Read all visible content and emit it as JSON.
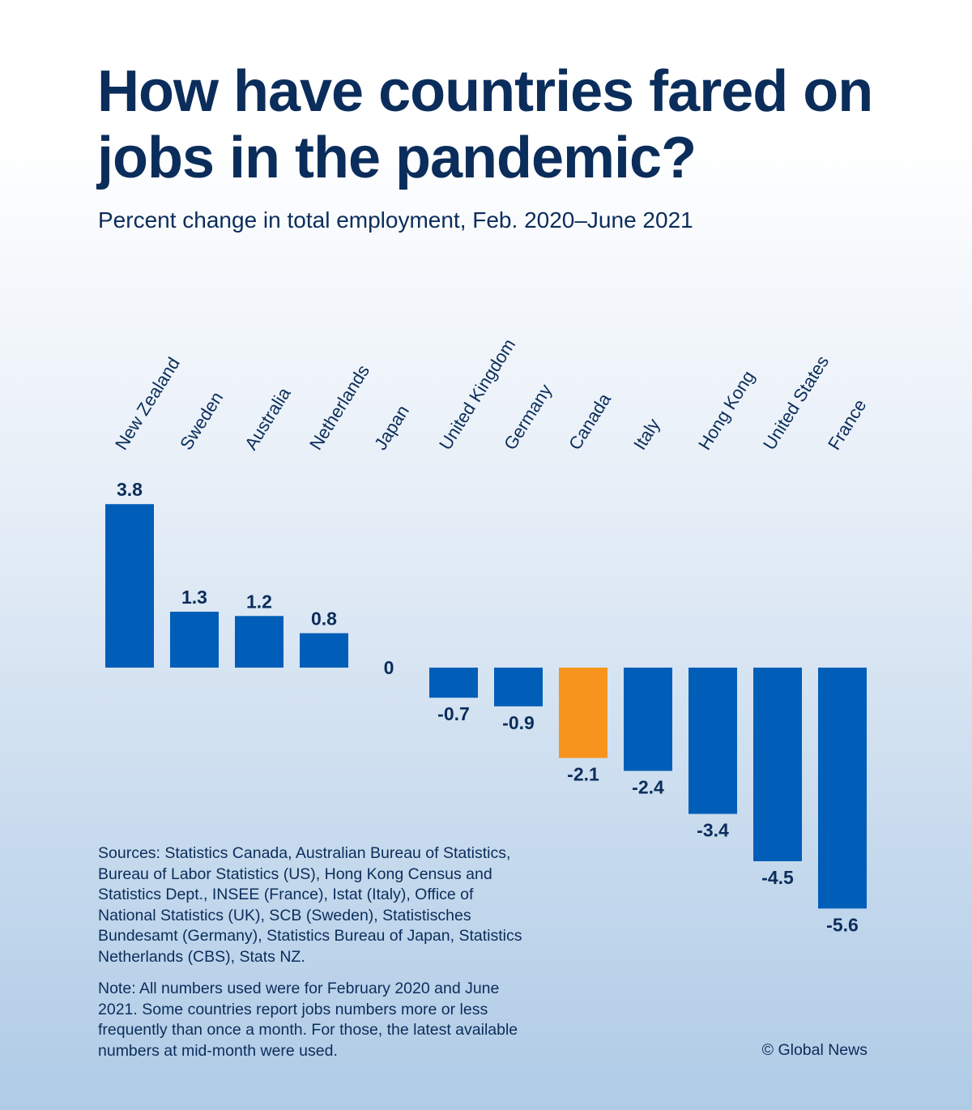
{
  "title": "How have countries fared on jobs in the pandemic?",
  "subtitle": "Percent change in total employment, Feb. 2020–June 2021",
  "sources": "Sources: Statistics Canada, Australian Bureau of Statistics, Bureau of Labor Statistics (US), Hong Kong Census and Statistics Dept., INSEE (France), Istat (Italy), Office of National Statistics (UK), SCB (Sweden), Statistisches Bundesamt (Germany), Statistics Bureau of Japan, Statistics Netherlands (CBS), Stats NZ.",
  "note": "Note: All numbers used were for February 2020 and June 2021. Some countries report jobs numbers more or less frequently than once a month. For those, the latest available numbers at mid-month were used.",
  "credit": "© Global News",
  "colors": {
    "bar": "#005eb8",
    "highlight": "#f7941d",
    "text": "#0b2d5b"
  },
  "chart_data": {
    "type": "bar",
    "categories": [
      "New Zealand",
      "Sweden",
      "Australia",
      "Netherlands",
      "Japan",
      "United Kingdom",
      "Germany",
      "Canada",
      "Italy",
      "Hong Kong",
      "United States",
      "France"
    ],
    "values": [
      3.8,
      1.3,
      1.2,
      0.8,
      0,
      -0.7,
      -0.9,
      -2.1,
      -2.4,
      -3.4,
      -4.5,
      -5.6
    ],
    "value_labels": [
      "3.8",
      "1.3",
      "1.2",
      "0.8",
      "0",
      "-0.7",
      "-0.9",
      "-2.1",
      "-2.4",
      "-3.4",
      "-4.5",
      "-5.6"
    ],
    "highlight": "Canada",
    "title": "How have countries fared on jobs in the pandemic?",
    "subtitle": "Percent change in total employment, Feb. 2020–June 2021",
    "xlabel": "",
    "ylabel": "",
    "grid": false,
    "legend": "none"
  }
}
